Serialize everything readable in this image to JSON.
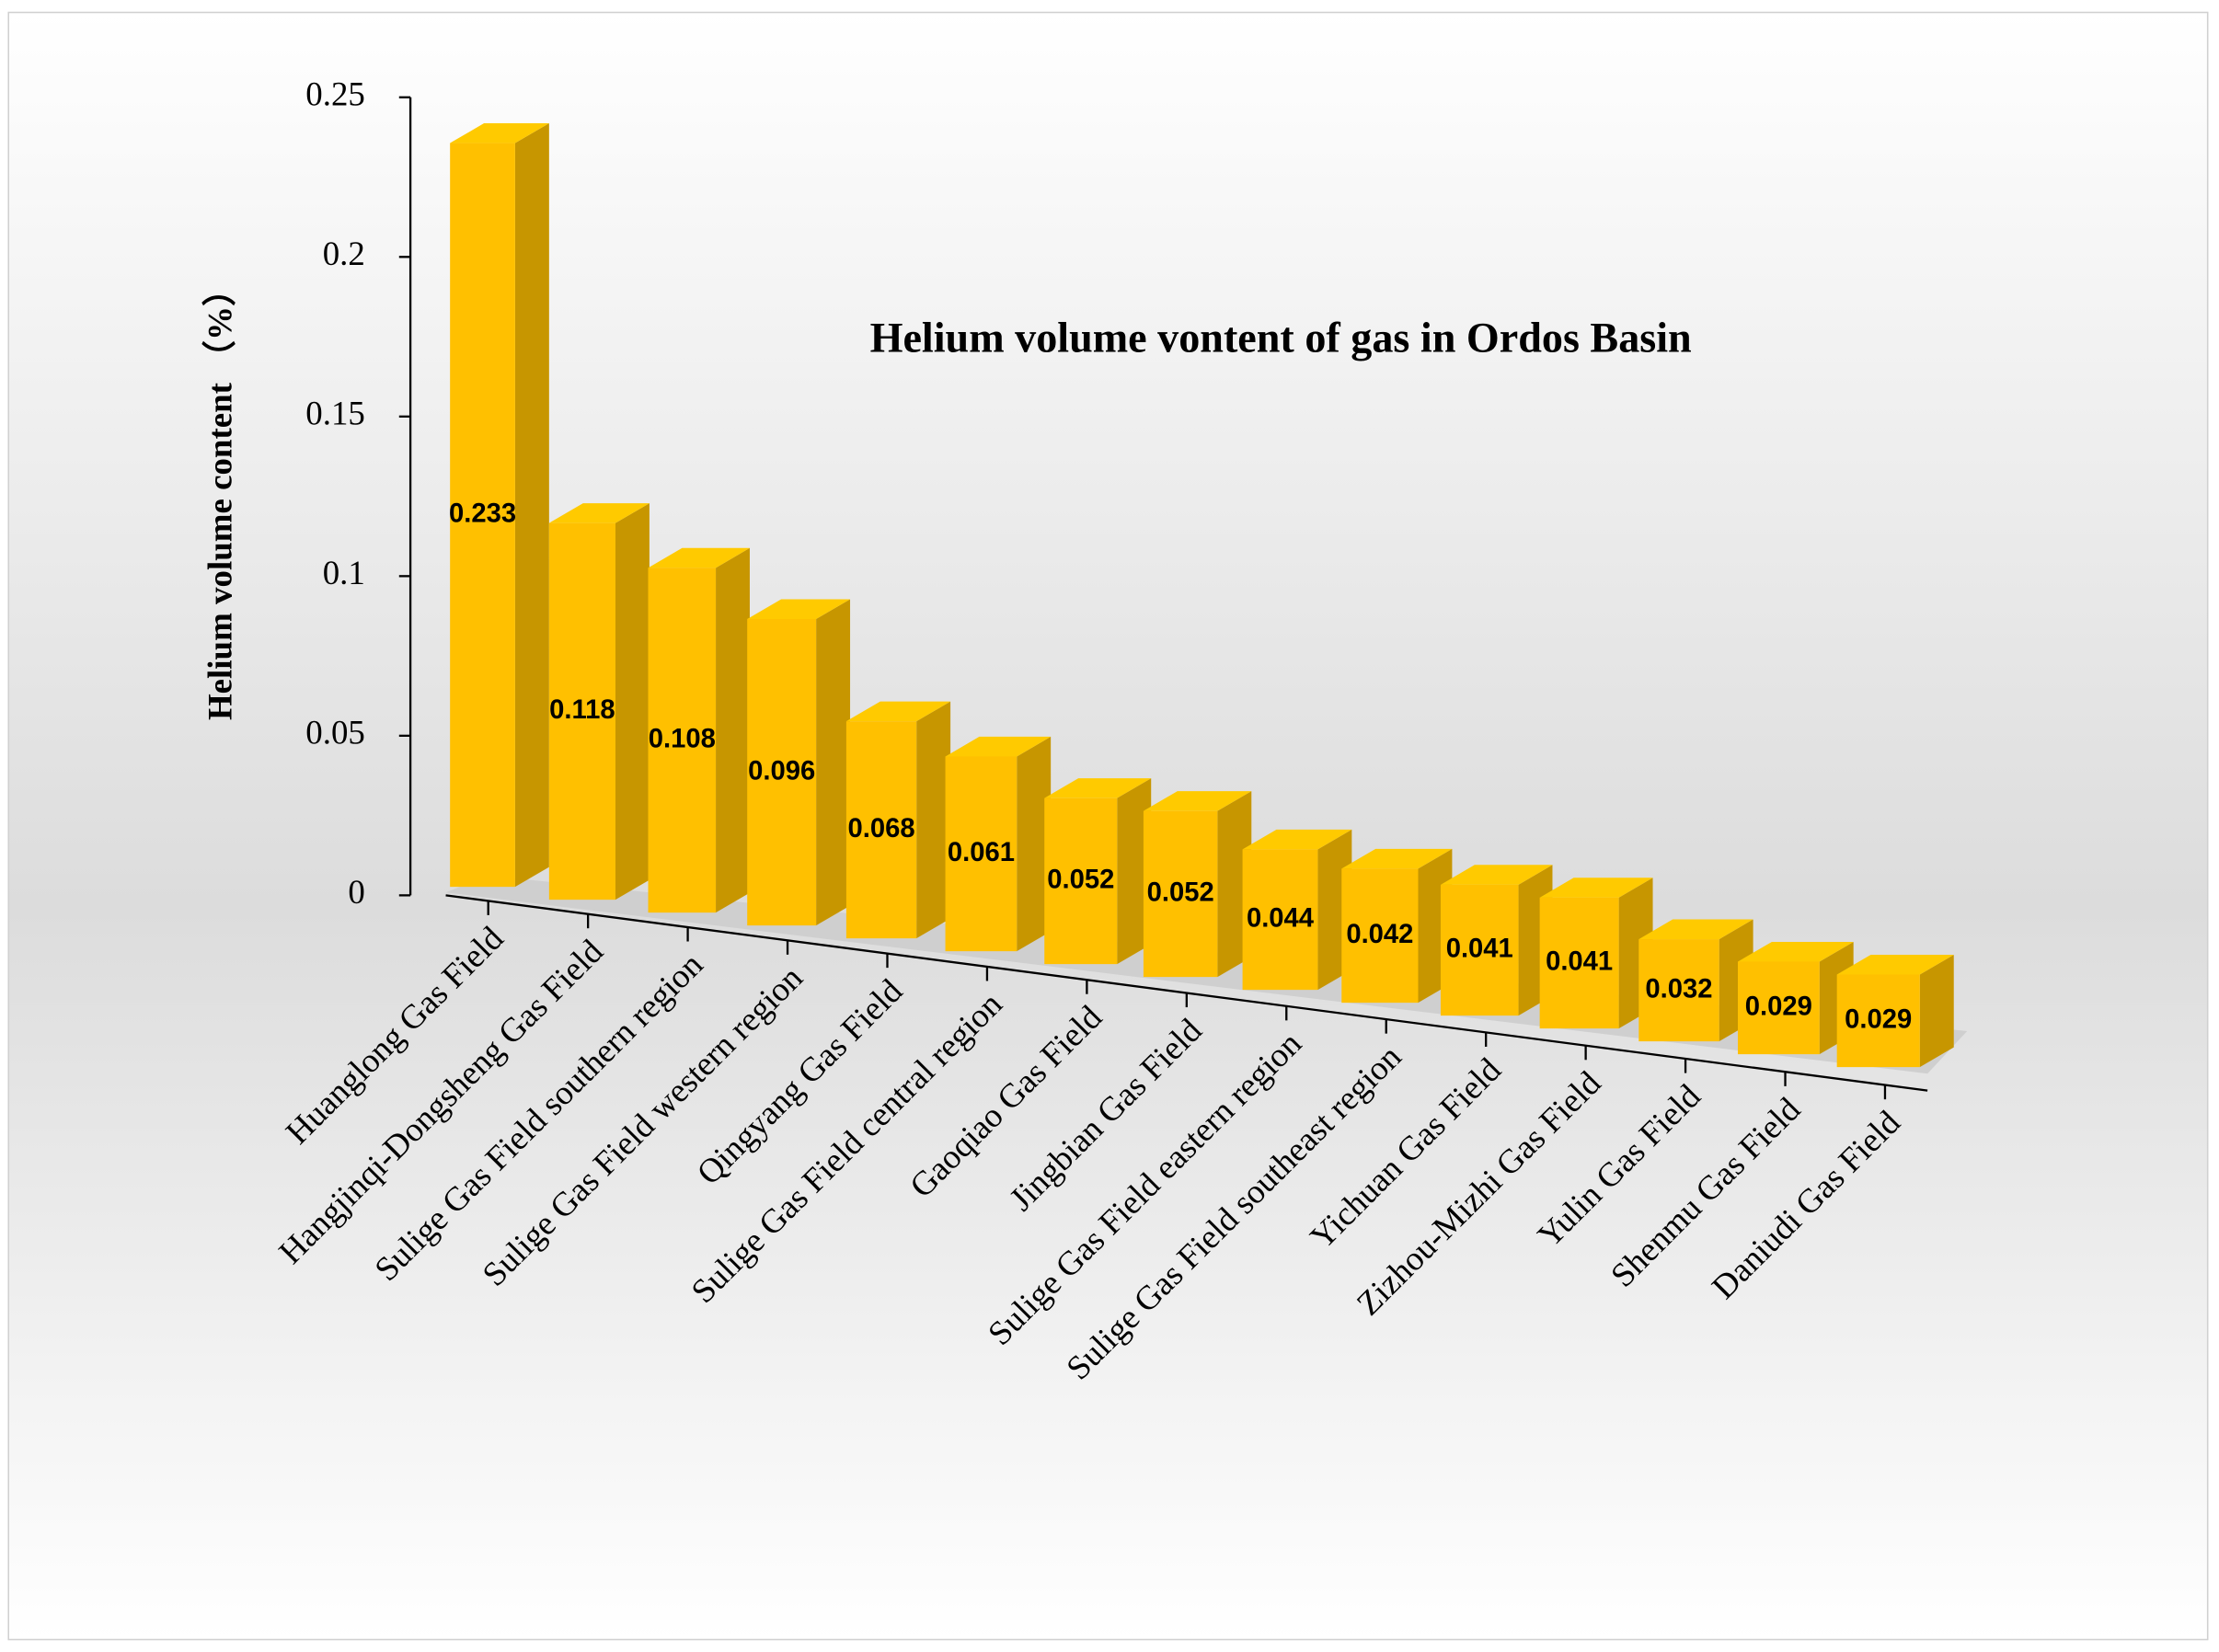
{
  "chart_data": {
    "type": "bar3d",
    "title": "Helium volume vontent of gas in Ordos Basin",
    "y_label": "Helium volume content （%）",
    "categories": [
      "Huanglong Gas Field",
      "Hangjinqi-Dongsheng Gas Field",
      "Sulige Gas Field southern region",
      "Sulige Gas Field western region",
      "Qingyang Gas Field",
      "Sulige Gas Field central region",
      "Gaoqiao Gas Field",
      "Jingbian Gas Field",
      "Sulige Gas Field eastern region",
      "Sulige Gas Field southeast region",
      "Yichuan Gas Field",
      "Zizhou-Mizhi Gas Field",
      "Yulin Gas Field",
      "Shenmu Gas Field",
      "Daniudi Gas Field"
    ],
    "values": [
      0.233,
      0.118,
      0.108,
      0.096,
      0.068,
      0.061,
      0.052,
      0.052,
      0.044,
      0.042,
      0.041,
      0.041,
      0.032,
      0.029,
      0.029
    ],
    "color": "#ffc000",
    "ylim": [
      0,
      0.25
    ],
    "yticks": [
      0,
      0.05,
      0.1,
      0.15,
      0.2,
      0.25
    ]
  }
}
